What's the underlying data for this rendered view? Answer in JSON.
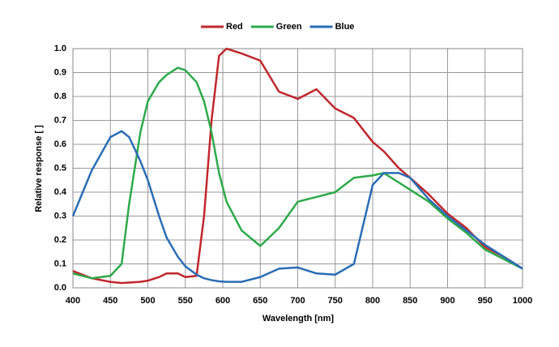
{
  "chart_data": {
    "type": "line",
    "xlabel": "Wavelength  [nm]",
    "ylabel": "Relative response [ ]",
    "x": [
      400,
      425,
      450,
      465,
      475,
      490,
      500,
      515,
      525,
      540,
      550,
      565,
      575,
      585,
      595,
      605,
      625,
      650,
      675,
      700,
      725,
      750,
      775,
      800,
      815,
      835,
      850,
      875,
      900,
      925,
      950,
      975,
      1000
    ],
    "series": [
      {
        "name": "Red",
        "color": "#c0272d",
        "values": [
          0.07,
          0.04,
          0.025,
          0.02,
          0.022,
          0.025,
          0.03,
          0.045,
          0.06,
          0.06,
          0.045,
          0.05,
          0.3,
          0.7,
          0.97,
          1.0,
          0.98,
          0.95,
          0.82,
          0.79,
          0.83,
          0.75,
          0.71,
          0.61,
          0.57,
          0.5,
          0.46,
          0.39,
          0.31,
          0.25,
          0.17,
          0.13,
          0.08
        ]
      },
      {
        "name": "Green",
        "color": "#2eaa4a",
        "values": [
          0.06,
          0.04,
          0.05,
          0.1,
          0.35,
          0.65,
          0.78,
          0.86,
          0.89,
          0.92,
          0.91,
          0.86,
          0.78,
          0.65,
          0.48,
          0.36,
          0.24,
          0.175,
          0.25,
          0.36,
          0.38,
          0.4,
          0.46,
          0.47,
          0.48,
          0.44,
          0.41,
          0.36,
          0.29,
          0.23,
          0.16,
          0.12,
          0.08
        ]
      },
      {
        "name": "Blue",
        "color": "#2a6db5",
        "values": [
          0.3,
          0.49,
          0.63,
          0.655,
          0.63,
          0.53,
          0.45,
          0.3,
          0.21,
          0.13,
          0.09,
          0.055,
          0.04,
          0.032,
          0.027,
          0.025,
          0.025,
          0.045,
          0.08,
          0.085,
          0.06,
          0.055,
          0.1,
          0.43,
          0.48,
          0.48,
          0.46,
          0.37,
          0.3,
          0.24,
          0.18,
          0.13,
          0.08
        ]
      }
    ],
    "xlim": [
      400,
      1000
    ],
    "xticks": [
      400,
      450,
      500,
      550,
      600,
      650,
      700,
      750,
      800,
      850,
      900,
      950,
      1000
    ],
    "ylim": [
      0,
      1
    ],
    "yticks": [
      {
        "value": 0,
        "label": "0.0"
      },
      0.1,
      0.2,
      0.3,
      0.4,
      0.5,
      0.6,
      0.7,
      0.8,
      0.9,
      {
        "value": 1,
        "label": "1.0"
      }
    ],
    "grid": true,
    "legend": "top"
  }
}
